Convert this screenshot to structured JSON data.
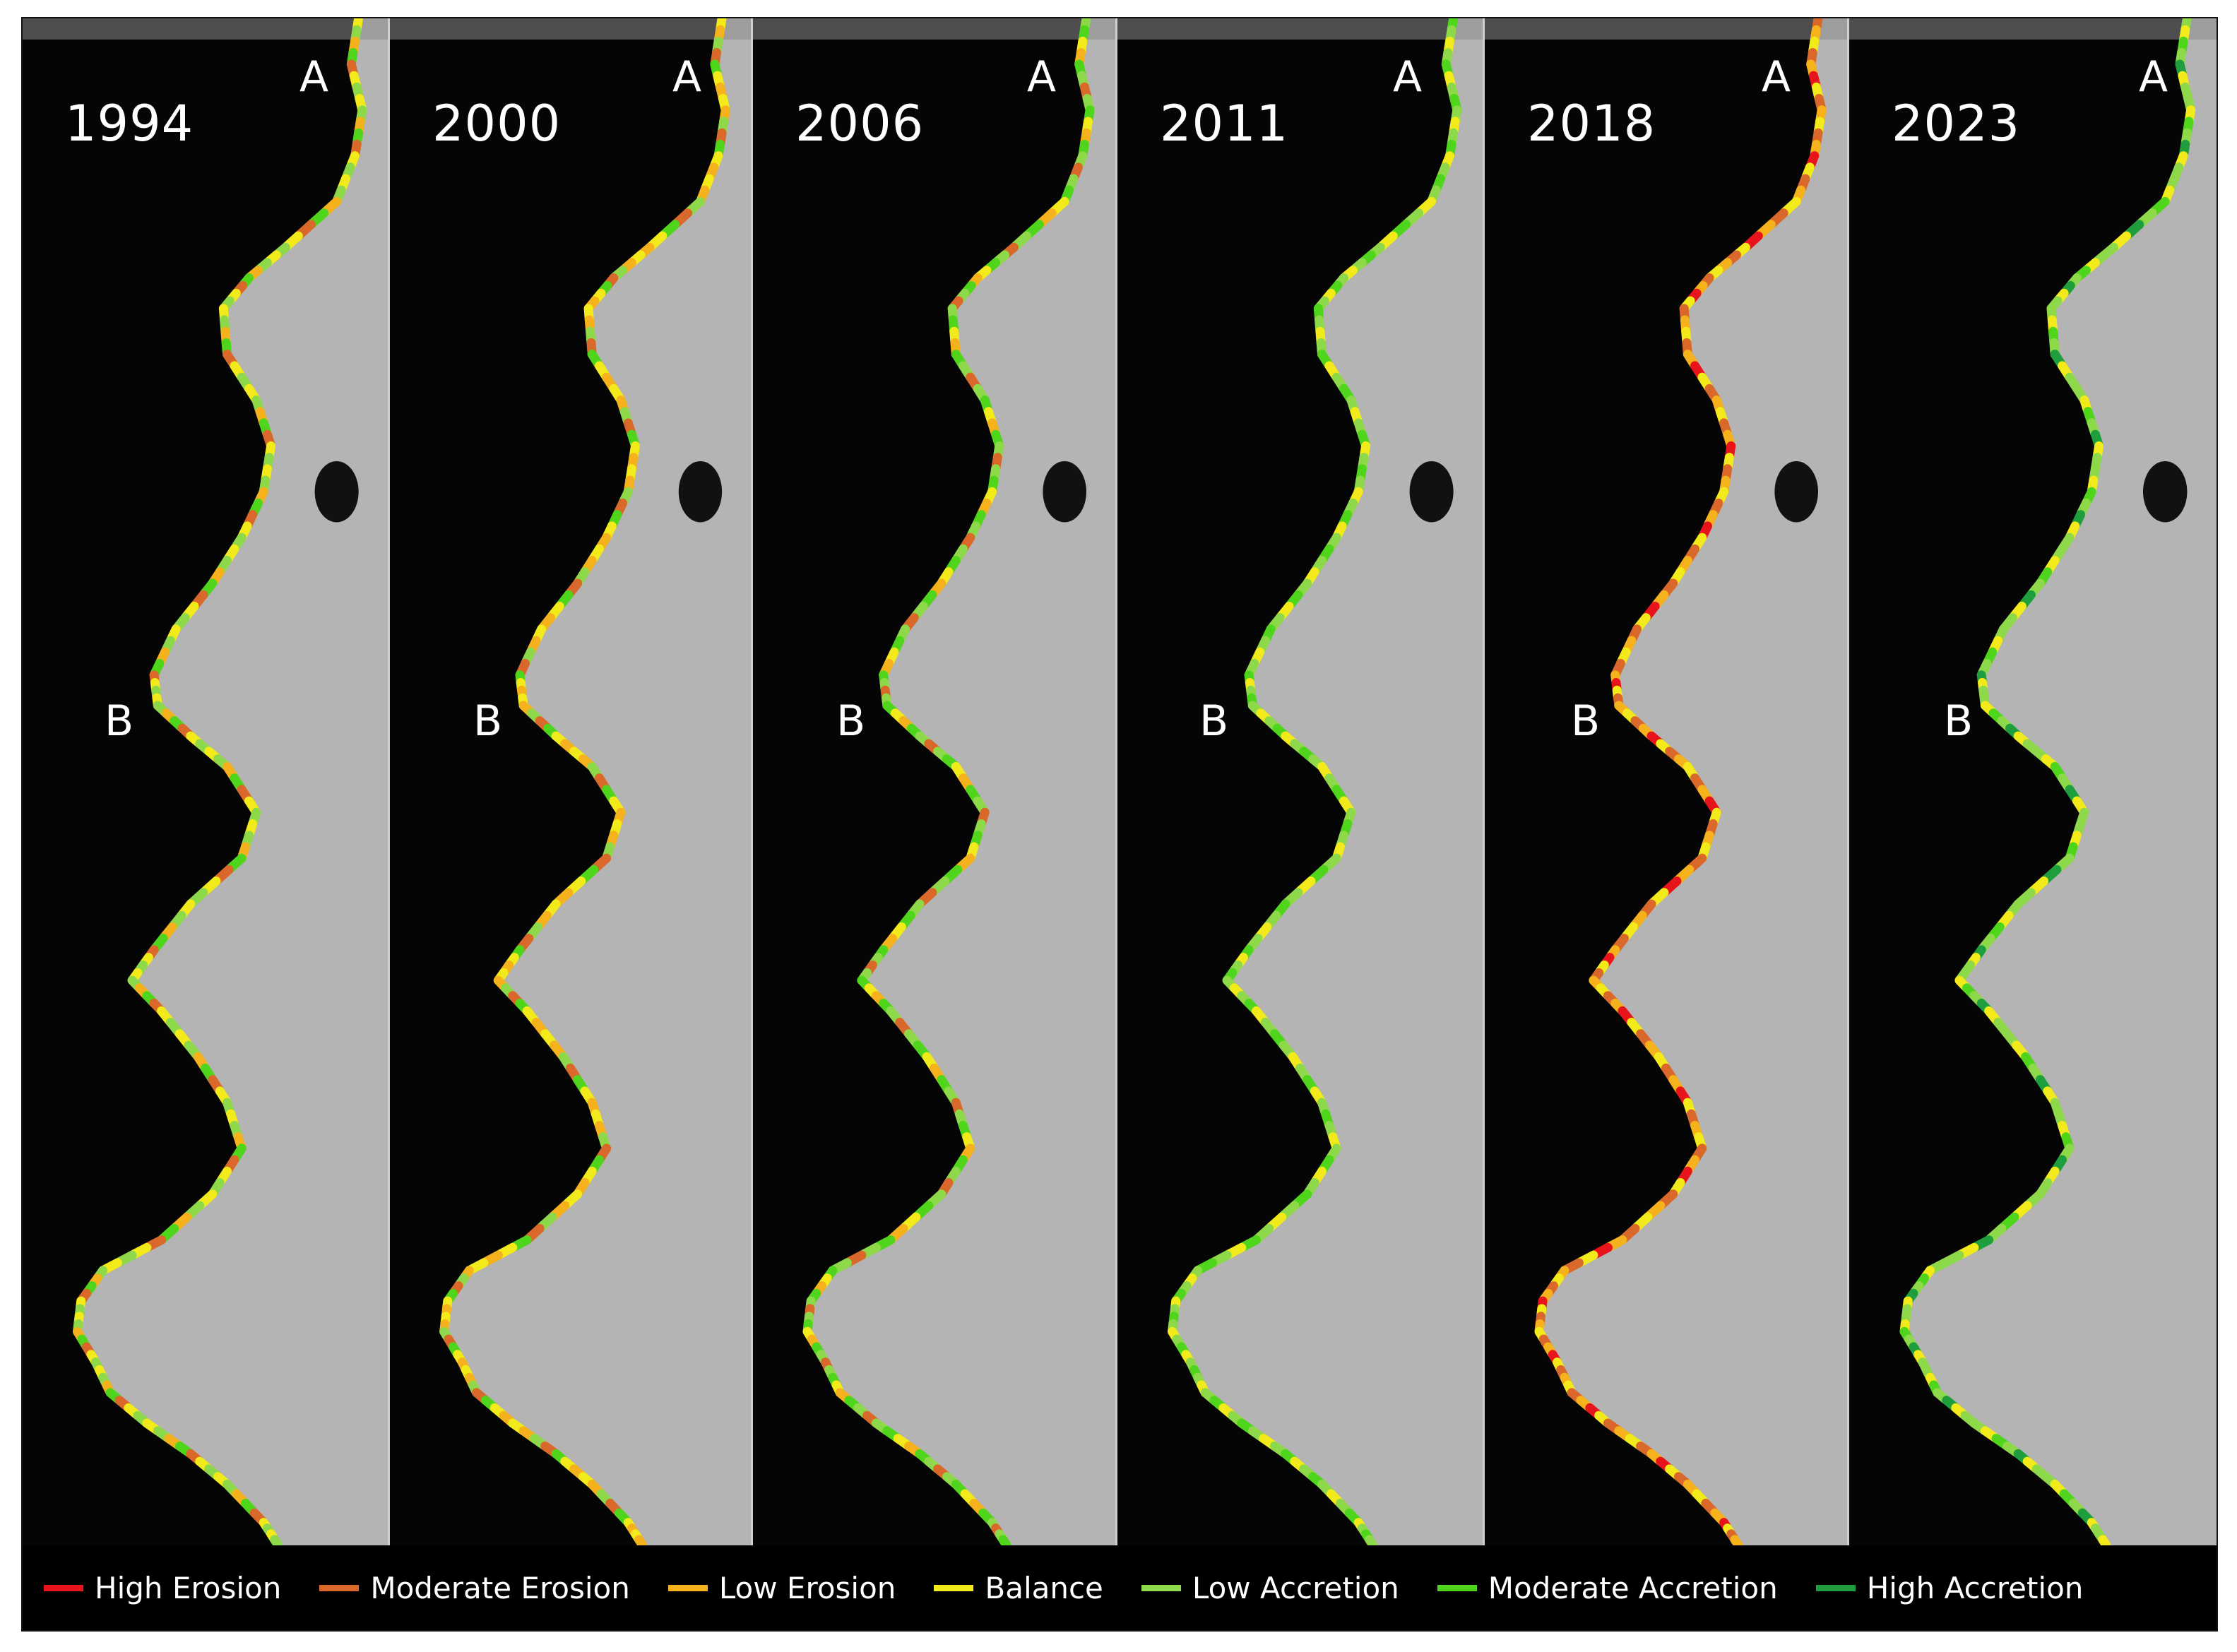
{
  "panels": [
    {
      "year": "1994",
      "label_a": "A",
      "label_b": "B"
    },
    {
      "year": "2000",
      "label_a": "A",
      "label_b": "B"
    },
    {
      "year": "2006",
      "label_a": "A",
      "label_b": "B"
    },
    {
      "year": "2011",
      "label_a": "A",
      "label_b": "B"
    },
    {
      "year": "2018",
      "label_a": "A",
      "label_b": "B"
    },
    {
      "year": "2023",
      "label_a": "A",
      "label_b": "B"
    }
  ],
  "legend": [
    {
      "label": "High Erosion",
      "color": "#e8141b"
    },
    {
      "label": "Moderate Erosion",
      "color": "#d9682a"
    },
    {
      "label": "Low Erosion",
      "color": "#f6b21c"
    },
    {
      "label": "Balance",
      "color": "#f2ea1a"
    },
    {
      "label": "Low Accretion",
      "color": "#8ed94a"
    },
    {
      "label": "Moderate Accretion",
      "color": "#4fd61c"
    },
    {
      "label": "High Accretion",
      "color": "#1e9e3c"
    }
  ],
  "colors": {
    "water": "#050505",
    "land": "#b4b4b4",
    "land_dark": "#8a8a8a",
    "panel_divider": "#cfcfcf"
  }
}
